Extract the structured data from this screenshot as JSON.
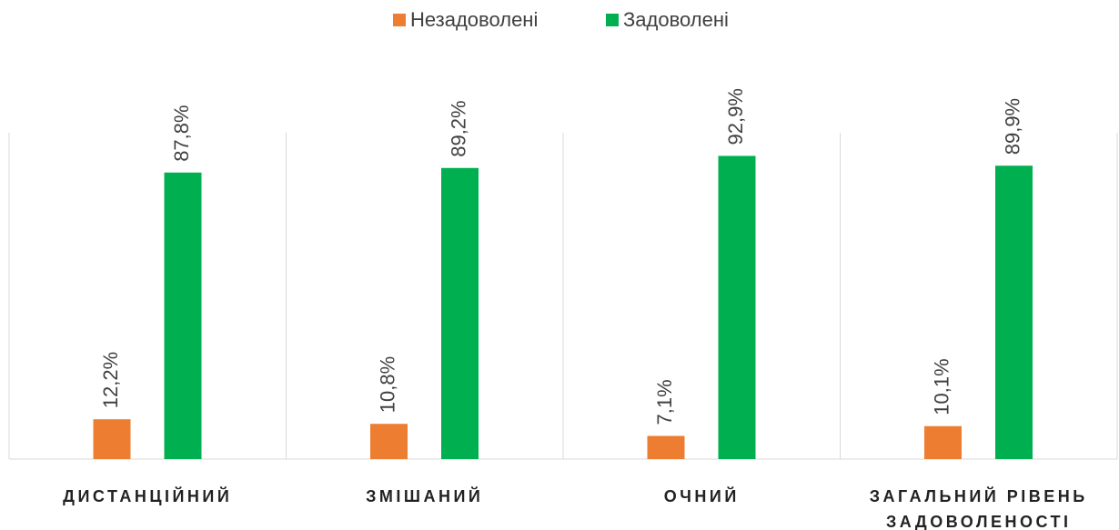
{
  "chart_data": {
    "type": "bar",
    "categories": [
      "ДИСТАНЦІЙНИЙ",
      "ЗМІШАНИЙ",
      "ОЧНИЙ",
      "ЗАГАЛЬНИЙ РІВЕНЬ ЗАДОВОЛЕНОСТІ"
    ],
    "series": [
      {
        "name": "Незадоволені",
        "color": "#ed7d31",
        "values": [
          12.2,
          10.8,
          7.1,
          10.1
        ],
        "value_labels": [
          "12,2%",
          "10,8%",
          "7,1%",
          "10,1%"
        ]
      },
      {
        "name": "Задоволені",
        "color": "#00b050",
        "values": [
          87.8,
          89.2,
          92.9,
          89.9
        ],
        "value_labels": [
          "87,8%",
          "89,2%",
          "92,9%",
          "89,9%"
        ]
      }
    ],
    "ylim": [
      0,
      100
    ],
    "legend": "top"
  }
}
